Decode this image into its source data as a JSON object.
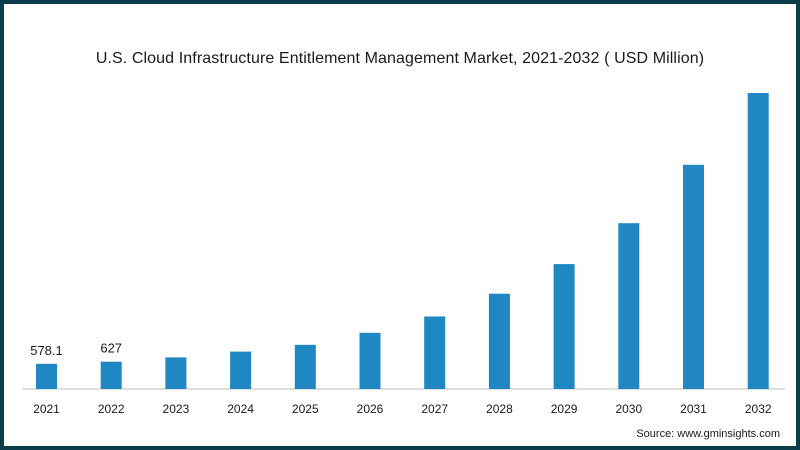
{
  "title": "U.S. Cloud Infrastructure Entitlement Management Market, 2021-2032 ( USD Million)",
  "source": "Source: www.gminsights.com",
  "colors": {
    "bar": "#1f87c1",
    "border": "#0b3d4a",
    "axis": "#bfbfbf",
    "text": "#1a1a1a"
  },
  "chart_data": {
    "type": "bar",
    "title": "U.S. Cloud Infrastructure Entitlement Management Market, 2021-2032 ( USD Million)",
    "categories": [
      "2021",
      "2022",
      "2023",
      "2024",
      "2025",
      "2026",
      "2027",
      "2028",
      "2029",
      "2030",
      "2031",
      "2032"
    ],
    "values": [
      578.1,
      627,
      725,
      860,
      1015,
      1290,
      1665,
      2190,
      2870,
      3810,
      5150,
      6800
    ],
    "data_labels": [
      "578.1",
      "627",
      "",
      "",
      "",
      "",
      "",
      "",
      "",
      "",
      "",
      ""
    ],
    "xlabel": "",
    "ylabel": "",
    "ylim": [
      0,
      6800
    ],
    "grid": false,
    "legend": "none"
  }
}
